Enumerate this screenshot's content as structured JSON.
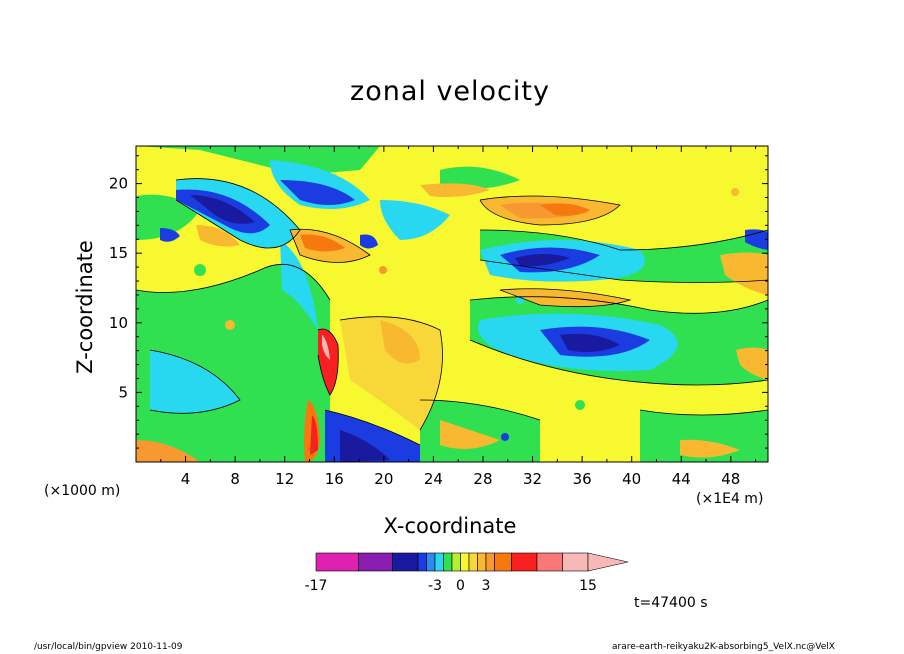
{
  "chart_data": {
    "type": "heatmap",
    "title": "zonal velocity",
    "xlabel": "X-coordinate",
    "ylabel": "Z-coordinate",
    "x_unit_left": "(×1000 m)",
    "x_unit_right": "(×1E4 m)",
    "xlim": [
      0,
      51
    ],
    "ylim": [
      0,
      22.7
    ],
    "x_ticks": [
      4,
      8,
      12,
      16,
      20,
      24,
      28,
      32,
      36,
      40,
      44,
      48
    ],
    "y_ticks": [
      5,
      10,
      15,
      20
    ],
    "colorbar": {
      "labels": [
        "-17",
        "-3",
        "0",
        "3",
        "15"
      ],
      "levels": [
        -17,
        -12,
        -8,
        -5,
        -4,
        -3,
        -2,
        -1,
        0,
        1,
        2,
        3,
        4,
        6,
        9,
        12,
        15
      ],
      "colors": [
        "#e020b0",
        "#8a1cb0",
        "#1a1aa0",
        "#1a3ce0",
        "#2a8cf0",
        "#28d8f0",
        "#30e050",
        "#b8ee30",
        "#f8f830",
        "#f8d838",
        "#f8b830",
        "#f89830",
        "#f87810",
        "#f82020",
        "#f87878",
        "#f8b8b8"
      ],
      "extend": "max"
    },
    "grid": false
  },
  "time_label": "t=47400 s",
  "footer": {
    "left": "/usr/local/bin/gpview  2010-11-09",
    "right": "arare-earth-reikyaku2K-absorbing5_VelX.nc@VelX"
  }
}
